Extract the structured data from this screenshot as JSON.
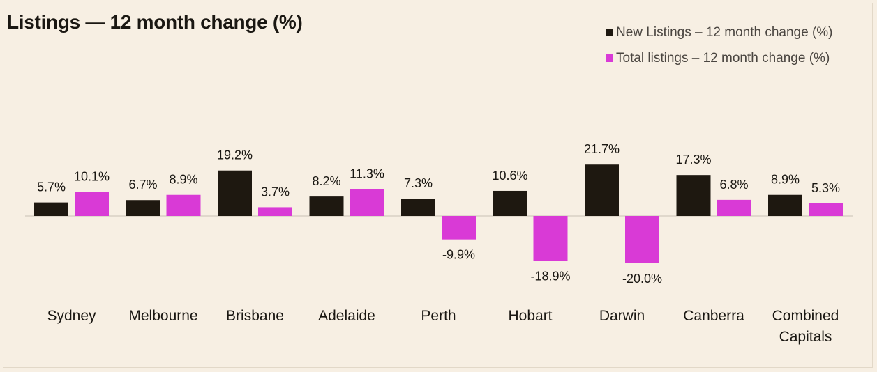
{
  "chart_data": {
    "type": "bar",
    "title": "Listings — 12 month change (%)",
    "categories": [
      "Sydney",
      "Melbourne",
      "Brisbane",
      "Adelaide",
      "Perth",
      "Hobart",
      "Darwin",
      "Canberra",
      "Combined Capitals"
    ],
    "series": [
      {
        "name": "New Listings – 12 month change (%)",
        "color": "#1e1810",
        "values": [
          5.7,
          6.7,
          19.2,
          8.2,
          7.3,
          10.6,
          21.7,
          17.3,
          8.9
        ],
        "labels": [
          "5.7%",
          "6.7%",
          "19.2%",
          "8.2%",
          "7.3%",
          "10.6%",
          "21.7%",
          "17.3%",
          "8.9%"
        ]
      },
      {
        "name": "Total listings – 12 month change (%)",
        "color": "#d93ad6",
        "values": [
          10.1,
          8.9,
          3.7,
          11.3,
          -9.9,
          -18.9,
          -20.0,
          6.8,
          5.3
        ],
        "labels": [
          "10.1%",
          "8.9%",
          "3.7%",
          "11.3%",
          "-9.9%",
          "-18.9%",
          "-20.0%",
          "6.8%",
          "5.3%"
        ]
      }
    ],
    "legend_position": "top-right",
    "grid": false,
    "baseline_color": "#d8d0c4"
  }
}
